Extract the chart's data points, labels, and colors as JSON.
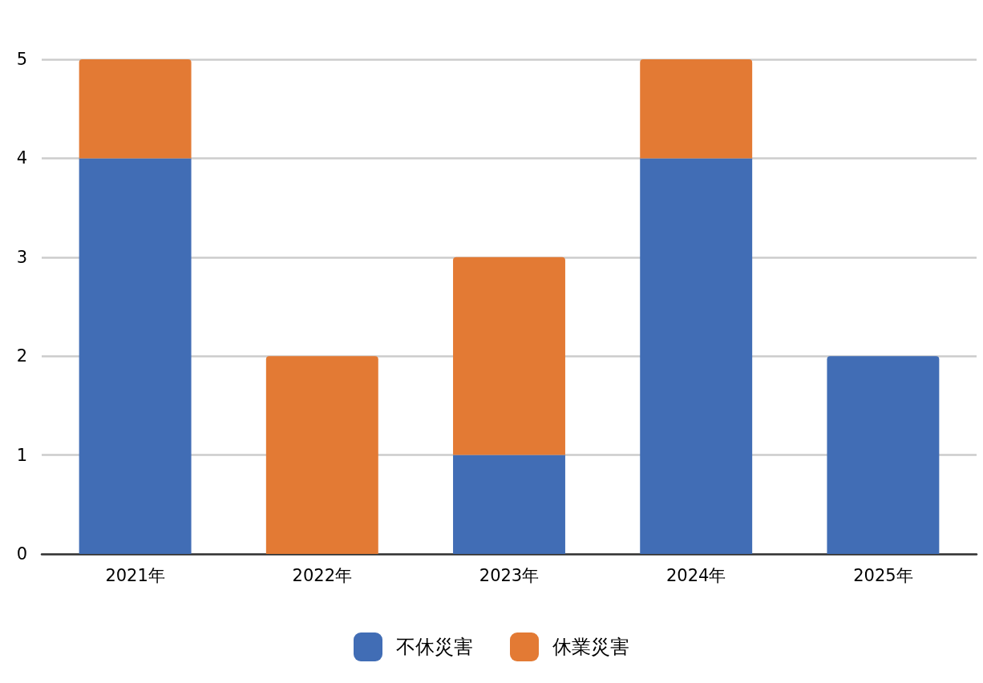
{
  "chart_data": {
    "type": "bar",
    "stacked": true,
    "categories": [
      "2021年",
      "2022年",
      "2023年",
      "2024年",
      "2025年"
    ],
    "series": [
      {
        "name": "不休災害",
        "color": "#416db5",
        "values": [
          4,
          0,
          1,
          4,
          2
        ]
      },
      {
        "name": "休業災害",
        "color": "#e37a34",
        "values": [
          1,
          2,
          2,
          1,
          0
        ]
      }
    ],
    "ylim": [
      0,
      5
    ],
    "yticks": [
      0,
      1,
      2,
      3,
      4,
      5
    ],
    "grid": "y",
    "legend": "bottom"
  }
}
